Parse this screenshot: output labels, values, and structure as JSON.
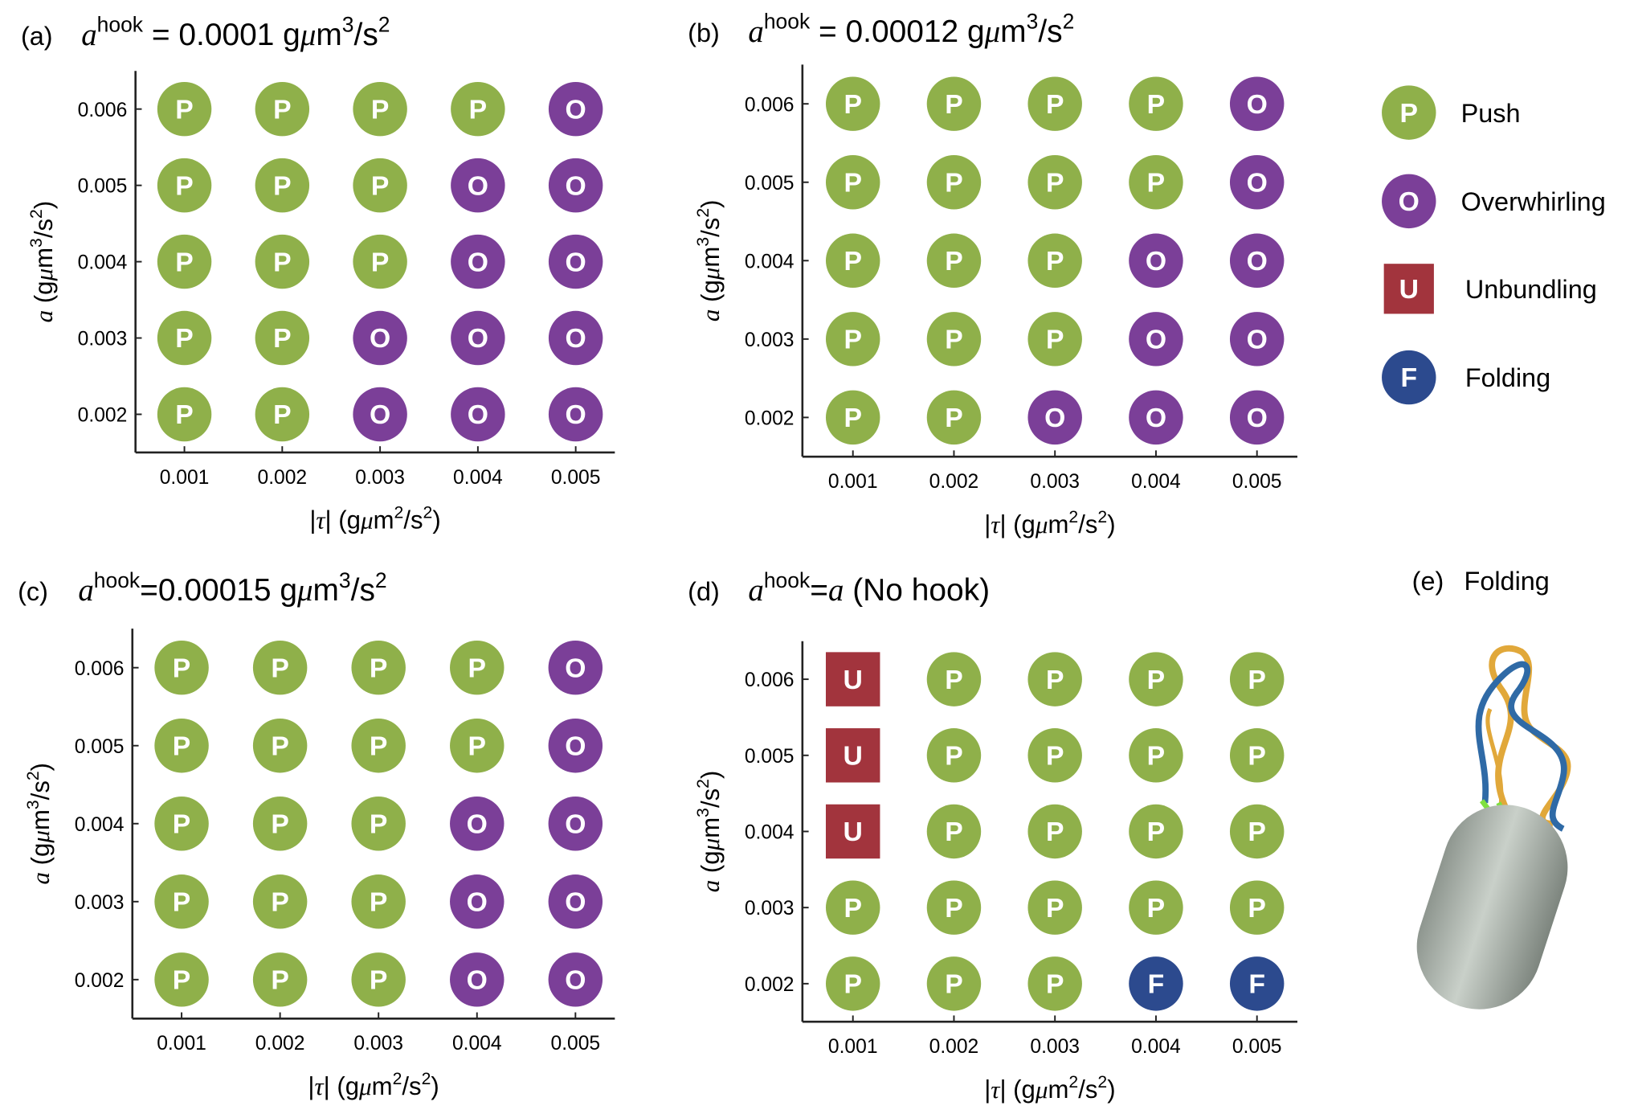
{
  "legend": [
    {
      "name": "Push",
      "symbol": "P",
      "color": "#8fb04a",
      "shape": "circle"
    },
    {
      "name": "Overwhirling",
      "symbol": "O",
      "color": "#7b3f98",
      "shape": "circle"
    },
    {
      "name": "Unbundling",
      "symbol": "U",
      "color": "#a2343d",
      "shape": "square"
    },
    {
      "name": "Folding",
      "symbol": "F",
      "color": "#2c4a8e",
      "shape": "circle"
    }
  ],
  "panel_e": {
    "label": "(e)",
    "title": "Folding"
  },
  "chart_data": [
    {
      "type": "scatter",
      "label": "(a)",
      "title": [
        {
          "text": "a",
          "style": "italic"
        },
        {
          "text": "hook",
          "style": "sup"
        },
        {
          "text": " = 0.0001 g"
        },
        {
          "text": "μ",
          "style": "italic"
        },
        {
          "text": "m"
        },
        {
          "text": "3",
          "style": "sup"
        },
        {
          "text": "/s"
        },
        {
          "text": "2",
          "style": "sup"
        }
      ],
      "xlabel": [
        {
          "text": "|"
        },
        {
          "text": "τ",
          "style": "italic"
        },
        {
          "text": "| (g"
        },
        {
          "text": "μ",
          "style": "italic"
        },
        {
          "text": "m"
        },
        {
          "text": "2",
          "style": "sup"
        },
        {
          "text": "/s"
        },
        {
          "text": "2",
          "style": "sup"
        },
        {
          "text": ")"
        }
      ],
      "ylabel": [
        {
          "text": "a",
          "style": "italic"
        },
        {
          "text": " (g"
        },
        {
          "text": "μ",
          "style": "italic"
        },
        {
          "text": "m"
        },
        {
          "text": "3",
          "style": "sup"
        },
        {
          "text": "/s"
        },
        {
          "text": "2",
          "style": "sup"
        },
        {
          "text": ")"
        }
      ],
      "xlim": [
        0.0005,
        0.0054
      ],
      "ylim": [
        0.0015,
        0.0065
      ],
      "xticks": [
        0.001,
        0.002,
        0.003,
        0.004,
        0.005
      ],
      "yticks": [
        0.002,
        0.003,
        0.004,
        0.005,
        0.006
      ],
      "series": [
        {
          "name": "Push",
          "symbol": "P",
          "color": "#8fb04a",
          "shape": "circle",
          "x": [
            0.001,
            0.002,
            0.003,
            0.004,
            0.001,
            0.002,
            0.003,
            0.001,
            0.002,
            0.003,
            0.001,
            0.002,
            0.001,
            0.002
          ],
          "y": [
            0.006,
            0.006,
            0.006,
            0.006,
            0.005,
            0.005,
            0.005,
            0.004,
            0.004,
            0.004,
            0.003,
            0.003,
            0.002,
            0.002
          ]
        },
        {
          "name": "Overwhirling",
          "symbol": "O",
          "color": "#7b3f98",
          "shape": "circle",
          "x": [
            0.005,
            0.004,
            0.005,
            0.004,
            0.005,
            0.003,
            0.004,
            0.005,
            0.003,
            0.004,
            0.005
          ],
          "y": [
            0.006,
            0.005,
            0.005,
            0.004,
            0.004,
            0.003,
            0.003,
            0.003,
            0.002,
            0.002,
            0.002
          ]
        }
      ]
    },
    {
      "type": "scatter",
      "label": "(b)",
      "title": [
        {
          "text": "a",
          "style": "italic"
        },
        {
          "text": "hook",
          "style": "sup"
        },
        {
          "text": " = 0.00012 g"
        },
        {
          "text": "μ",
          "style": "italic"
        },
        {
          "text": "m"
        },
        {
          "text": "3",
          "style": "sup"
        },
        {
          "text": "/s"
        },
        {
          "text": "2",
          "style": "sup"
        }
      ],
      "xlabel": [
        {
          "text": "|"
        },
        {
          "text": "τ",
          "style": "italic"
        },
        {
          "text": "| (g"
        },
        {
          "text": "μ",
          "style": "italic"
        },
        {
          "text": "m"
        },
        {
          "text": "2",
          "style": "sup"
        },
        {
          "text": "/s"
        },
        {
          "text": "2",
          "style": "sup"
        },
        {
          "text": ")"
        }
      ],
      "ylabel": [
        {
          "text": "a",
          "style": "italic"
        },
        {
          "text": " (g"
        },
        {
          "text": "μ",
          "style": "italic"
        },
        {
          "text": "m"
        },
        {
          "text": "3",
          "style": "sup"
        },
        {
          "text": "/s"
        },
        {
          "text": "2",
          "style": "sup"
        },
        {
          "text": ")"
        }
      ],
      "xlim": [
        0.0005,
        0.0054
      ],
      "ylim": [
        0.0015,
        0.0065
      ],
      "xticks": [
        0.001,
        0.002,
        0.003,
        0.004,
        0.005
      ],
      "yticks": [
        0.002,
        0.003,
        0.004,
        0.005,
        0.006
      ],
      "series": [
        {
          "name": "Push",
          "symbol": "P",
          "color": "#8fb04a",
          "shape": "circle",
          "x": [
            0.001,
            0.002,
            0.003,
            0.004,
            0.001,
            0.002,
            0.003,
            0.004,
            0.001,
            0.002,
            0.003,
            0.001,
            0.002,
            0.003,
            0.001,
            0.002
          ],
          "y": [
            0.006,
            0.006,
            0.006,
            0.006,
            0.005,
            0.005,
            0.005,
            0.005,
            0.004,
            0.004,
            0.004,
            0.003,
            0.003,
            0.003,
            0.002,
            0.002
          ]
        },
        {
          "name": "Overwhirling",
          "symbol": "O",
          "color": "#7b3f98",
          "shape": "circle",
          "x": [
            0.005,
            0.005,
            0.004,
            0.005,
            0.004,
            0.005,
            0.003,
            0.004,
            0.005
          ],
          "y": [
            0.006,
            0.005,
            0.004,
            0.004,
            0.003,
            0.003,
            0.002,
            0.002,
            0.002
          ]
        }
      ]
    },
    {
      "type": "scatter",
      "label": "(c)",
      "title": [
        {
          "text": "a",
          "style": "italic"
        },
        {
          "text": "hook",
          "style": "sup"
        },
        {
          "text": "=0.00015 g"
        },
        {
          "text": "μ",
          "style": "italic"
        },
        {
          "text": "m"
        },
        {
          "text": "3",
          "style": "sup"
        },
        {
          "text": "/s"
        },
        {
          "text": "2",
          "style": "sup"
        }
      ],
      "xlabel": [
        {
          "text": "|"
        },
        {
          "text": "τ",
          "style": "italic"
        },
        {
          "text": "| (g"
        },
        {
          "text": "μ",
          "style": "italic"
        },
        {
          "text": "m"
        },
        {
          "text": "2",
          "style": "sup"
        },
        {
          "text": "/s"
        },
        {
          "text": "2",
          "style": "sup"
        },
        {
          "text": ")"
        }
      ],
      "ylabel": [
        {
          "text": "a",
          "style": "italic"
        },
        {
          "text": " (g"
        },
        {
          "text": "μ",
          "style": "italic"
        },
        {
          "text": "m"
        },
        {
          "text": "3",
          "style": "sup"
        },
        {
          "text": "/s"
        },
        {
          "text": "2",
          "style": "sup"
        },
        {
          "text": ")"
        }
      ],
      "xlim": [
        0.0005,
        0.0054
      ],
      "ylim": [
        0.0015,
        0.0065
      ],
      "xticks": [
        0.001,
        0.002,
        0.003,
        0.004,
        0.005
      ],
      "yticks": [
        0.002,
        0.003,
        0.004,
        0.005,
        0.006
      ],
      "series": [
        {
          "name": "Push",
          "symbol": "P",
          "color": "#8fb04a",
          "shape": "circle",
          "x": [
            0.001,
            0.002,
            0.003,
            0.004,
            0.001,
            0.002,
            0.003,
            0.004,
            0.001,
            0.002,
            0.003,
            0.001,
            0.002,
            0.003,
            0.001,
            0.002,
            0.003
          ],
          "y": [
            0.006,
            0.006,
            0.006,
            0.006,
            0.005,
            0.005,
            0.005,
            0.005,
            0.004,
            0.004,
            0.004,
            0.003,
            0.003,
            0.003,
            0.002,
            0.002,
            0.002
          ]
        },
        {
          "name": "Overwhirling",
          "symbol": "O",
          "color": "#7b3f98",
          "shape": "circle",
          "x": [
            0.005,
            0.005,
            0.004,
            0.005,
            0.004,
            0.005,
            0.004,
            0.005
          ],
          "y": [
            0.006,
            0.005,
            0.004,
            0.004,
            0.003,
            0.003,
            0.002,
            0.002
          ]
        }
      ]
    },
    {
      "type": "scatter",
      "label": "(d)",
      "title": [
        {
          "text": "a",
          "style": "italic"
        },
        {
          "text": "hook",
          "style": "sup"
        },
        {
          "text": "="
        },
        {
          "text": "a",
          "style": "italic"
        },
        {
          "text": " (No hook)"
        }
      ],
      "xlabel": [
        {
          "text": "|"
        },
        {
          "text": "τ",
          "style": "italic"
        },
        {
          "text": "| (g"
        },
        {
          "text": "μ",
          "style": "italic"
        },
        {
          "text": "m"
        },
        {
          "text": "2",
          "style": "sup"
        },
        {
          "text": "/s"
        },
        {
          "text": "2",
          "style": "sup"
        },
        {
          "text": ")"
        }
      ],
      "ylabel": [
        {
          "text": "a",
          "style": "italic"
        },
        {
          "text": " (g"
        },
        {
          "text": "μ",
          "style": "italic"
        },
        {
          "text": "m"
        },
        {
          "text": "3",
          "style": "sup"
        },
        {
          "text": "/s"
        },
        {
          "text": "2",
          "style": "sup"
        },
        {
          "text": ")"
        }
      ],
      "xlim": [
        0.0005,
        0.0054
      ],
      "ylim": [
        0.0015,
        0.0065
      ],
      "xticks": [
        0.001,
        0.002,
        0.003,
        0.004,
        0.005
      ],
      "yticks": [
        0.002,
        0.003,
        0.004,
        0.005,
        0.006
      ],
      "series": [
        {
          "name": "Push",
          "symbol": "P",
          "color": "#8fb04a",
          "shape": "circle",
          "x": [
            0.002,
            0.003,
            0.004,
            0.005,
            0.002,
            0.003,
            0.004,
            0.005,
            0.002,
            0.003,
            0.004,
            0.005,
            0.001,
            0.002,
            0.003,
            0.004,
            0.005,
            0.001,
            0.002,
            0.003
          ],
          "y": [
            0.006,
            0.006,
            0.006,
            0.006,
            0.005,
            0.005,
            0.005,
            0.005,
            0.004,
            0.004,
            0.004,
            0.004,
            0.003,
            0.003,
            0.003,
            0.003,
            0.003,
            0.002,
            0.002,
            0.002
          ]
        },
        {
          "name": "Unbundling",
          "symbol": "U",
          "color": "#a2343d",
          "shape": "square",
          "x": [
            0.001,
            0.001,
            0.001
          ],
          "y": [
            0.006,
            0.005,
            0.004
          ]
        },
        {
          "name": "Folding",
          "symbol": "F",
          "color": "#2c4a8e",
          "shape": "circle",
          "x": [
            0.004,
            0.005
          ],
          "y": [
            0.002,
            0.002
          ]
        }
      ]
    }
  ]
}
